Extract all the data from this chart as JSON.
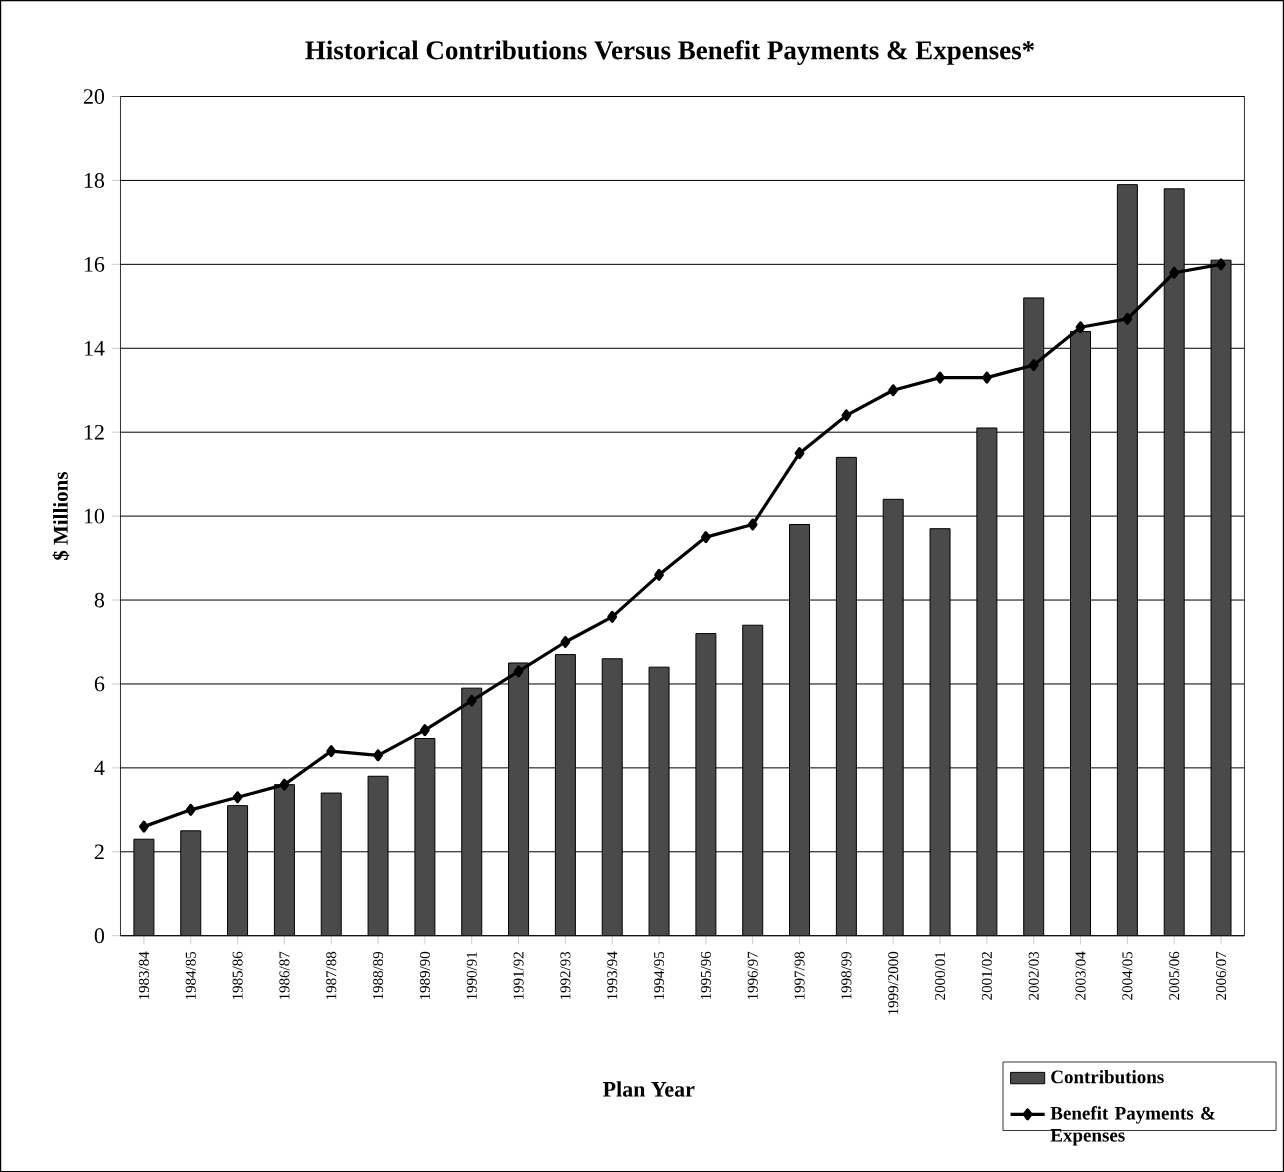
{
  "chart_data": {
    "type": "bar",
    "title": "Historical Contributions Versus Benefit Payments & Expenses*",
    "xlabel": "Plan Year",
    "ylabel": "$ Millions",
    "categories": [
      "1983/84",
      "1984/85",
      "1985/86",
      "1986/87",
      "1987/88",
      "1988/89",
      "1989/90",
      "1990/91",
      "1991/92",
      "1992/93",
      "1993/94",
      "1994/95",
      "1995/96",
      "1996/97",
      "1997/98",
      "1998/99",
      "1999/2000",
      "2000/01",
      "2001/02",
      "2002/03",
      "2003/04",
      "2004/05",
      "2005/06",
      "2006/07"
    ],
    "series": [
      {
        "name": "Contributions",
        "color": "#4a4a4a",
        "values": [
          2.3,
          2.5,
          3.1,
          3.6,
          3.4,
          3.8,
          4.7,
          5.9,
          6.5,
          6.7,
          6.6,
          6.4,
          7.2,
          7.4,
          9.8,
          11.4,
          10.4,
          9.7,
          12.1,
          15.2,
          14.4,
          17.9,
          17.8,
          16.1
        ]
      },
      {
        "name": "Benefit Payments & Expenses",
        "type": "line",
        "color": "#000000",
        "marker": "diamond",
        "values": [
          2.6,
          3.0,
          3.3,
          3.6,
          4.4,
          4.3,
          4.9,
          5.6,
          6.3,
          7.0,
          7.6,
          8.6,
          9.5,
          9.8,
          11.5,
          12.4,
          13.0,
          13.3,
          13.3,
          13.6,
          14.5,
          14.7,
          15.8,
          16.0
        ]
      }
    ],
    "ylim": [
      0,
      20
    ],
    "yticks": [
      0,
      2,
      4,
      6,
      8,
      10,
      12,
      14,
      16,
      18,
      20
    ],
    "grid": "y",
    "legend": "bottom right"
  }
}
